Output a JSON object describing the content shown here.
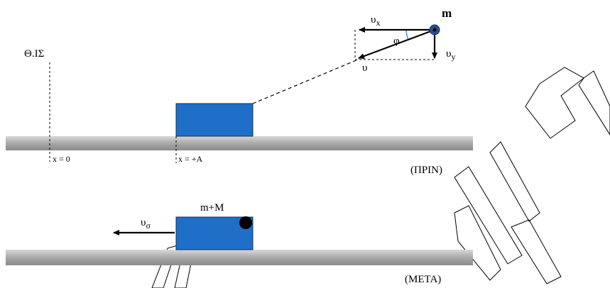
{
  "colors": {
    "surface_light": "#d9d9d9",
    "surface_mid": "#a9a9a9",
    "surface_dark": "#8a8a8a",
    "block_fill": "#1f6fc8",
    "block_stroke": "#0d2f5e",
    "ball_fill": "#2a4f8c",
    "ink": "#000000",
    "watermark": "#000000"
  },
  "labels": {
    "equilibrium": "Θ.ΙΣ",
    "x_zero": "x = 0",
    "x_plus_a": "x = +A",
    "before": "(ΠΡΙΝ)",
    "after": "(ΜΕΤΑ)",
    "mass_m": "m",
    "combined_mass": "m+M",
    "angle": "φ",
    "v_main": "υ",
    "v_x_base": "υ",
    "v_x_sub": "x",
    "v_y_base": "υ",
    "v_y_sub": "y",
    "v_c_base": "υ",
    "v_c_sub": "σ"
  },
  "watermark_text": "2015",
  "icons": {
    "velocity_arrows": "arrow-icon",
    "ball": "ball-icon"
  }
}
